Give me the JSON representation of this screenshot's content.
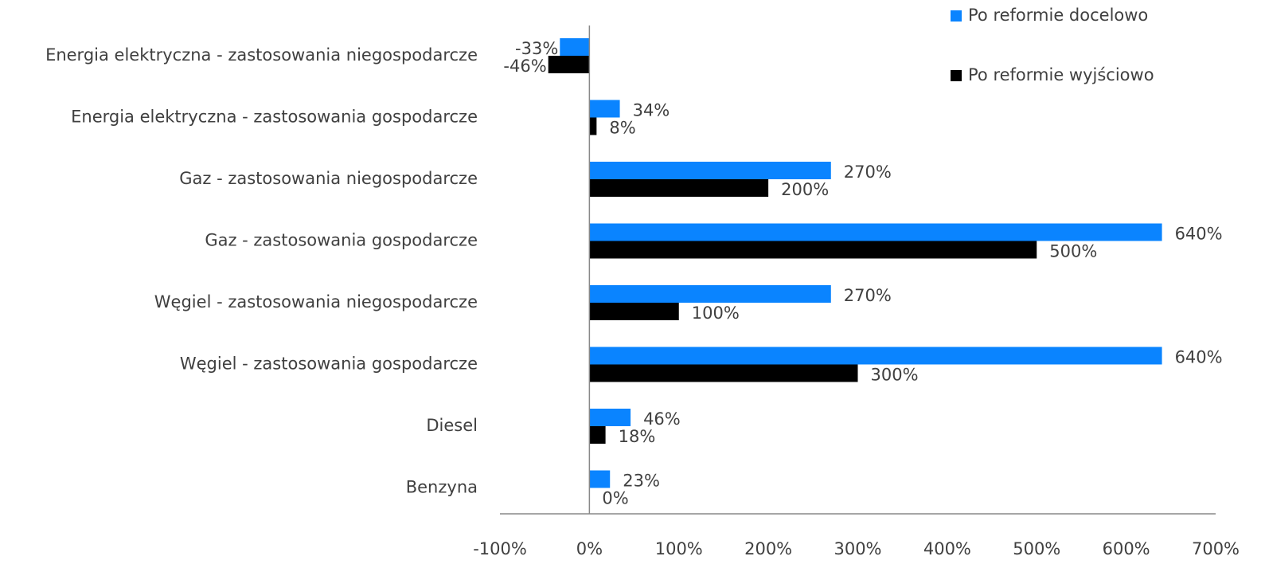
{
  "chart_data": {
    "type": "barh",
    "categories": [
      "Energia elektryczna - zastosowania niegospodarcze",
      "Energia elektryczna - zastosowania gospodarcze",
      "Gaz - zastosowania niegospodarcze",
      "Gaz - zastosowania gospodarcze",
      "Węgiel - zastosowania niegospodarcze",
      "Węgiel - zastosowania gospodarcze",
      "Diesel",
      "Benzyna"
    ],
    "series": [
      {
        "name": "Po reformie docelowo",
        "color": "#0a84ff",
        "values": [
          -33,
          34,
          270,
          640,
          270,
          640,
          46,
          23
        ],
        "value_labels": [
          "-33%",
          "34%",
          "270%",
          "640%",
          "270%",
          "640%",
          "46%",
          "23%"
        ]
      },
      {
        "name": "Po reformie wyjściowo",
        "color": "#000000",
        "values": [
          -46,
          8,
          200,
          500,
          100,
          300,
          18,
          0
        ],
        "value_labels": [
          "-46%",
          "8%",
          "200%",
          "500%",
          "100%",
          "300%",
          "18%",
          "0%"
        ]
      }
    ],
    "xlim": [
      -100,
      700
    ],
    "xticks": [
      {
        "value": -100,
        "label": "-100%"
      },
      {
        "value": 0,
        "label": "0%"
      },
      {
        "value": 100,
        "label": "100%"
      },
      {
        "value": 200,
        "label": "200%"
      },
      {
        "value": 300,
        "label": "300%"
      },
      {
        "value": 400,
        "label": "400%"
      },
      {
        "value": 500,
        "label": "500%"
      },
      {
        "value": 600,
        "label": "600%"
      },
      {
        "value": 700,
        "label": "700%"
      }
    ],
    "grid": false,
    "legend": "upper right"
  }
}
